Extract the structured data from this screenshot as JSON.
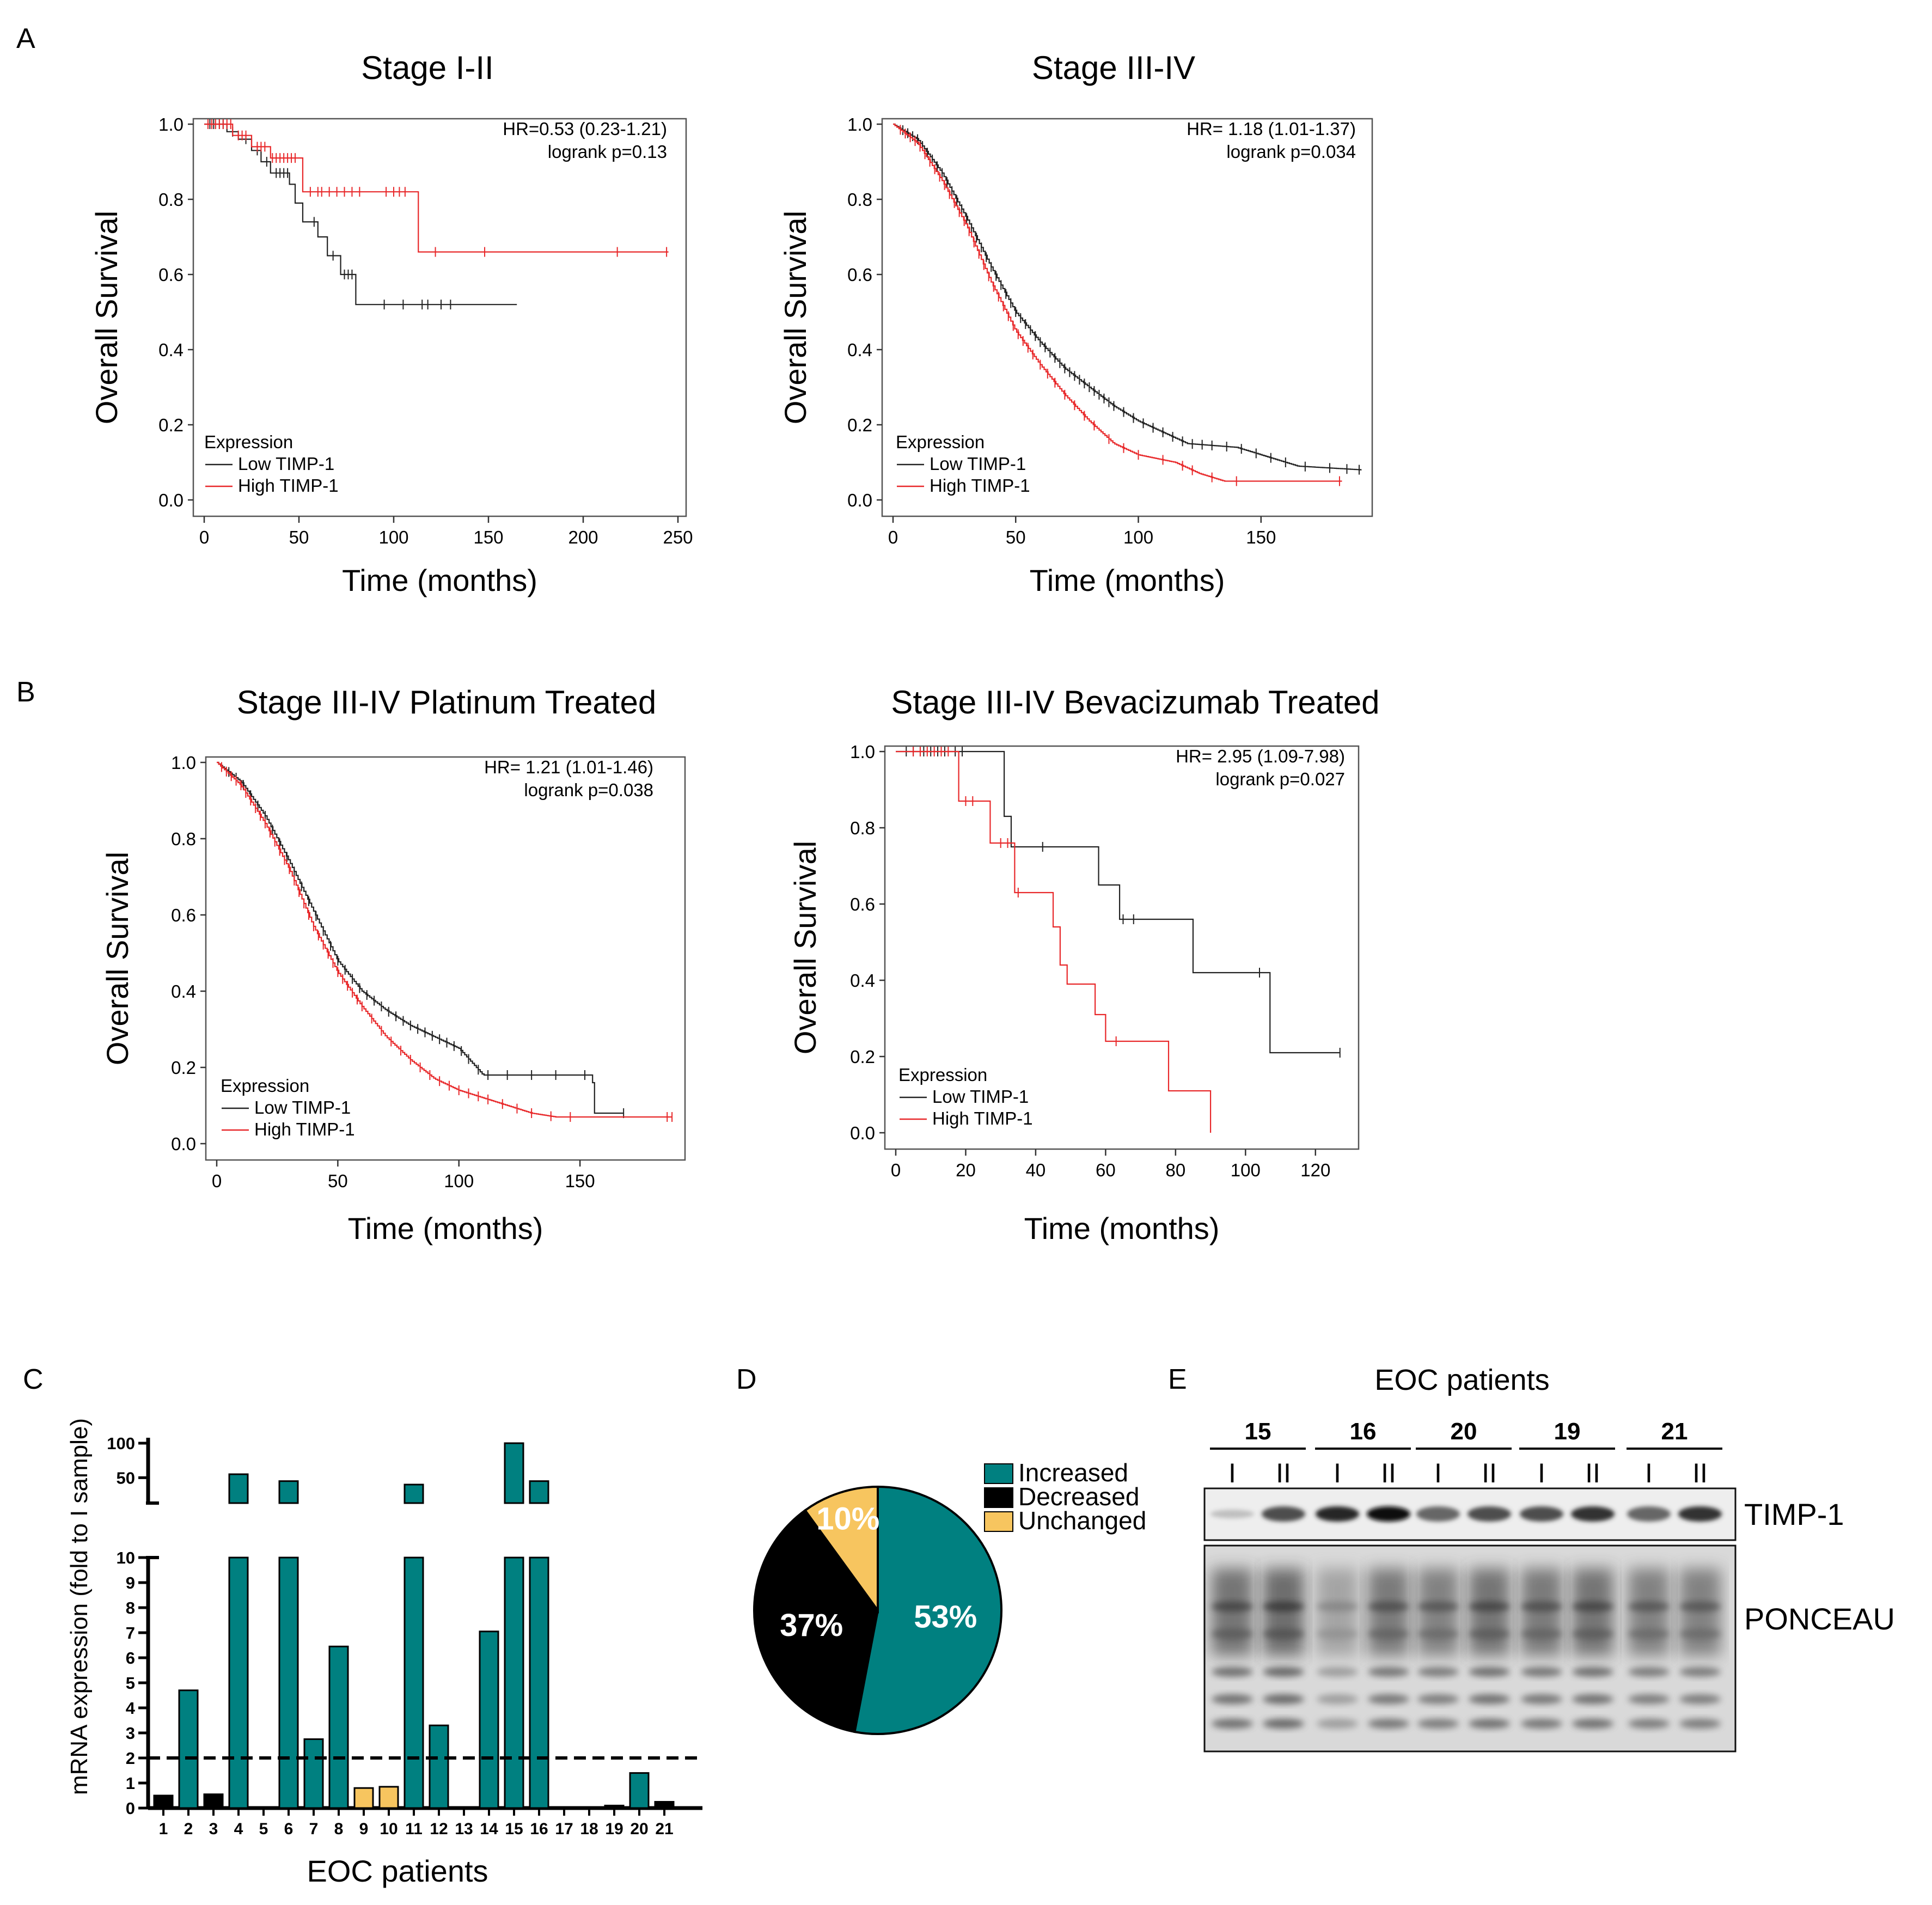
{
  "panel_labels": [
    "A",
    "B",
    "C",
    "D",
    "E"
  ],
  "colors": {
    "low": "#222222",
    "high": "#e8282a",
    "increased": "#008080",
    "decreased": "#000000",
    "unchanged": "#f7c55f",
    "frame": "#555555"
  },
  "chart_data": [
    {
      "id": "A1",
      "type": "line",
      "title": "Stage I-II",
      "xlabel": "Time (months)",
      "ylabel": "Overall Survival",
      "xlim": [
        0,
        250
      ],
      "ylim": [
        0,
        1
      ],
      "xticks": [
        "0",
        "50",
        "100",
        "150",
        "200",
        "250"
      ],
      "yticks": [
        "0.0",
        "0.2",
        "0.4",
        "0.6",
        "0.8",
        "1.0"
      ],
      "hr": "HR=0.53 (0.23-1.21)",
      "logrank": "logrank p=0.13",
      "legend_title": "Expression",
      "series": [
        {
          "name": "Low TIMP-1",
          "key": "low",
          "end": 165,
          "steps": [
            [
              0,
              1
            ],
            [
              12,
              0.98
            ],
            [
              18,
              0.96
            ],
            [
              25,
              0.93
            ],
            [
              30,
              0.9
            ],
            [
              35,
              0.87
            ],
            [
              45,
              0.84
            ],
            [
              48,
              0.79
            ],
            [
              52,
              0.74
            ],
            [
              60,
              0.7
            ],
            [
              65,
              0.65
            ],
            [
              72,
              0.6
            ],
            [
              80,
              0.52
            ]
          ],
          "censors": [
            3,
            5,
            8,
            10,
            15,
            22,
            28,
            33,
            38,
            40,
            42,
            44,
            58,
            68,
            74,
            76,
            78,
            95,
            105,
            115,
            118,
            125,
            130
          ]
        },
        {
          "name": "High TIMP-1",
          "key": "high",
          "end": 245,
          "steps": [
            [
              0,
              1
            ],
            [
              15,
              0.97
            ],
            [
              25,
              0.94
            ],
            [
              35,
              0.91
            ],
            [
              52,
              0.82
            ],
            [
              113,
              0.66
            ]
          ],
          "censors": [
            2,
            4,
            6,
            8,
            10,
            12,
            14,
            18,
            20,
            22,
            28,
            30,
            32,
            36,
            38,
            40,
            42,
            44,
            46,
            48,
            56,
            60,
            62,
            66,
            70,
            74,
            78,
            82,
            96,
            100,
            103,
            106,
            122,
            148,
            218,
            244
          ]
        }
      ]
    },
    {
      "id": "A2",
      "type": "line",
      "title": "Stage III-IV",
      "xlabel": "Time (months)",
      "ylabel": "Overall Survival",
      "xlim": [
        0,
        192
      ],
      "ylim": [
        0,
        1
      ],
      "xticks": [
        "0",
        "50",
        "100",
        "150"
      ],
      "yticks": [
        "0.0",
        "0.2",
        "0.4",
        "0.6",
        "0.8",
        "1.0"
      ],
      "hr": "HR= 1.18 (1.01-1.37)",
      "logrank": "logrank p=0.034",
      "legend_title": "Expression",
      "series": [
        {
          "name": "Low TIMP-1",
          "key": "low",
          "end": 191,
          "curve": [
            [
              0,
              1
            ],
            [
              10,
              0.96
            ],
            [
              20,
              0.87
            ],
            [
              30,
              0.75
            ],
            [
              40,
              0.62
            ],
            [
              50,
              0.5
            ],
            [
              60,
              0.42
            ],
            [
              70,
              0.35
            ],
            [
              80,
              0.3
            ],
            [
              90,
              0.25
            ],
            [
              100,
              0.21
            ],
            [
              110,
              0.18
            ],
            [
              120,
              0.15
            ],
            [
              140,
              0.14
            ],
            [
              150,
              0.12
            ],
            [
              165,
              0.09
            ],
            [
              191,
              0.08
            ]
          ],
          "censors": [
            4,
            6,
            8,
            10,
            12,
            14,
            16,
            18,
            20,
            22,
            24,
            26,
            28,
            30,
            32,
            34,
            36,
            38,
            40,
            42,
            44,
            46,
            48,
            50,
            52,
            54,
            56,
            58,
            60,
            62,
            64,
            66,
            68,
            70,
            72,
            74,
            76,
            78,
            80,
            82,
            84,
            86,
            88,
            90,
            94,
            98,
            102,
            106,
            110,
            114,
            118,
            122,
            126,
            130,
            136,
            142,
            148,
            154,
            160,
            168,
            178,
            185,
            190
          ]
        },
        {
          "name": "High TIMP-1",
          "key": "high",
          "end": 183,
          "curve": [
            [
              0,
              1
            ],
            [
              10,
              0.95
            ],
            [
              20,
              0.85
            ],
            [
              30,
              0.73
            ],
            [
              40,
              0.58
            ],
            [
              50,
              0.45
            ],
            [
              60,
              0.36
            ],
            [
              70,
              0.28
            ],
            [
              80,
              0.21
            ],
            [
              90,
              0.15
            ],
            [
              100,
              0.12
            ],
            [
              115,
              0.1
            ],
            [
              125,
              0.07
            ],
            [
              135,
              0.05
            ],
            [
              183,
              0.05
            ]
          ],
          "censors": [
            3,
            5,
            7,
            9,
            11,
            13,
            15,
            17,
            19,
            21,
            23,
            25,
            27,
            29,
            31,
            33,
            35,
            37,
            39,
            41,
            43,
            45,
            47,
            49,
            51,
            53,
            55,
            57,
            60,
            63,
            66,
            70,
            74,
            78,
            82,
            88,
            94,
            100,
            110,
            118,
            122,
            130,
            140,
            182
          ]
        }
      ]
    },
    {
      "id": "B1",
      "type": "line",
      "title": "Stage III-IV   Platinum Treated",
      "xlabel": "Time (months)",
      "ylabel": "Overall Survival",
      "xlim": [
        0,
        190
      ],
      "ylim": [
        0,
        1
      ],
      "xticks": [
        "0",
        "50",
        "100",
        "150"
      ],
      "yticks": [
        "0.0",
        "0.2",
        "0.4",
        "0.6",
        "0.8",
        "1.0"
      ],
      "hr": "HR= 1.21 (1.01-1.46)",
      "logrank": "logrank p=0.038",
      "legend_title": "Expression",
      "series": [
        {
          "name": "Low TIMP-1",
          "key": "low",
          "end": 168,
          "curve": [
            [
              0,
              1
            ],
            [
              10,
              0.95
            ],
            [
              20,
              0.86
            ],
            [
              30,
              0.74
            ],
            [
              40,
              0.61
            ],
            [
              50,
              0.48
            ],
            [
              60,
              0.4
            ],
            [
              70,
              0.35
            ],
            [
              80,
              0.31
            ],
            [
              90,
              0.28
            ],
            [
              100,
              0.25
            ],
            [
              110,
              0.18
            ],
            [
              155,
              0.18
            ],
            [
              156,
              0.08
            ],
            [
              168,
              0.08
            ]
          ],
          "censors": [
            5,
            8,
            11,
            14,
            17,
            20,
            23,
            26,
            29,
            32,
            35,
            38,
            41,
            44,
            47,
            50,
            53,
            56,
            59,
            62,
            65,
            68,
            71,
            74,
            77,
            80,
            83,
            86,
            89,
            92,
            95,
            98,
            101,
            104,
            108,
            112,
            120,
            130,
            140,
            152,
            168
          ]
        },
        {
          "name": "High TIMP-1",
          "key": "high",
          "end": 188,
          "curve": [
            [
              0,
              1
            ],
            [
              10,
              0.94
            ],
            [
              20,
              0.84
            ],
            [
              30,
              0.72
            ],
            [
              40,
              0.57
            ],
            [
              50,
              0.45
            ],
            [
              60,
              0.36
            ],
            [
              70,
              0.28
            ],
            [
              80,
              0.22
            ],
            [
              90,
              0.17
            ],
            [
              100,
              0.14
            ],
            [
              110,
              0.12
            ],
            [
              120,
              0.1
            ],
            [
              130,
              0.08
            ],
            [
              140,
              0.07
            ],
            [
              188,
              0.07
            ]
          ],
          "censors": [
            2,
            4,
            6,
            8,
            10,
            12,
            14,
            16,
            18,
            20,
            22,
            24,
            26,
            28,
            30,
            32,
            34,
            36,
            38,
            40,
            42,
            44,
            46,
            48,
            50,
            52,
            54,
            56,
            58,
            60,
            64,
            68,
            72,
            76,
            80,
            84,
            88,
            92,
            96,
            100,
            104,
            108,
            112,
            118,
            124,
            130,
            138,
            146,
            186,
            188
          ]
        }
      ]
    },
    {
      "id": "B2",
      "type": "line",
      "title": "Stage III-IV  Bevacizumab Treated",
      "xlabel": "Time (months)",
      "ylabel": "Overall Survival",
      "xlim": [
        0,
        130
      ],
      "ylim": [
        0,
        1
      ],
      "xticks": [
        "0",
        "20",
        "40",
        "60",
        "80",
        "100",
        "120"
      ],
      "yticks": [
        "0.0",
        "0.2",
        "0.4",
        "0.6",
        "0.8",
        "1.0"
      ],
      "hr": "HR= 2.95 (1.09-7.98)",
      "logrank": "logrank p=0.027",
      "legend_title": "Expression",
      "series": [
        {
          "name": "Low TIMP-1",
          "key": "low",
          "end": 127,
          "steps": [
            [
              0,
              1
            ],
            [
              31,
              0.83
            ],
            [
              33,
              0.75
            ],
            [
              58,
              0.65
            ],
            [
              64,
              0.56
            ],
            [
              85,
              0.42
            ],
            [
              107,
              0.21
            ]
          ],
          "censors": [
            3,
            5,
            7,
            8,
            10,
            12,
            14,
            17,
            19,
            42,
            65,
            68,
            104,
            127
          ]
        },
        {
          "name": "High TIMP-1",
          "key": "high",
          "end": 90,
          "steps": [
            [
              0,
              1
            ],
            [
              18,
              0.87
            ],
            [
              27,
              0.76
            ],
            [
              34,
              0.63
            ],
            [
              45,
              0.54
            ],
            [
              47,
              0.44
            ],
            [
              49,
              0.39
            ],
            [
              57,
              0.31
            ],
            [
              60,
              0.24
            ],
            [
              78,
              0.11
            ],
            [
              90,
              0.0
            ]
          ],
          "censors": [
            5,
            7,
            9,
            11,
            13,
            15,
            20,
            22,
            30,
            32,
            35,
            63
          ]
        }
      ]
    },
    {
      "id": "C",
      "type": "bar",
      "xlabel": "EOC patients",
      "ylabel": "mRNA expression (fold to I sample)",
      "categories": [
        "1",
        "2",
        "3",
        "4",
        "5",
        "6",
        "7",
        "8",
        "9",
        "10",
        "11",
        "12",
        "13",
        "14",
        "15",
        "16",
        "17",
        "18",
        "19",
        "20",
        "21"
      ],
      "values": [
        0.5,
        4.7,
        0.55,
        55,
        0,
        45,
        2.75,
        6.45,
        0.8,
        0.85,
        40,
        3.3,
        0,
        7.05,
        100,
        45,
        0,
        0,
        0.1,
        1.4,
        0.25
      ],
      "status": [
        "decreased",
        "increased",
        "decreased",
        "increased",
        "decreased",
        "increased",
        "increased",
        "increased",
        "unchanged",
        "unchanged",
        "increased",
        "increased",
        "decreased",
        "increased",
        "increased",
        "increased",
        "decreased",
        "decreased",
        "decreased",
        "increased",
        "decreased"
      ],
      "yticks_lower": [
        "0",
        "1",
        "2",
        "3",
        "4",
        "5",
        "6",
        "7",
        "8",
        "9",
        "10"
      ],
      "yticks_upper": [
        "50",
        "100"
      ],
      "threshold": 2
    },
    {
      "id": "D",
      "type": "pie",
      "slices": [
        {
          "label": "Increased",
          "value": 53,
          "text": "53%",
          "key": "increased"
        },
        {
          "label": "Decreased",
          "value": 37,
          "text": "37%",
          "key": "decreased"
        },
        {
          "label": "Unchanged",
          "value": 10,
          "text": "10%",
          "key": "unchanged"
        }
      ]
    }
  ],
  "blot": {
    "title": "EOC patients",
    "patients": [
      "15",
      "16",
      "20",
      "19",
      "21"
    ],
    "lane_labels": [
      "I",
      "II"
    ],
    "band_labels": [
      "TIMP-1",
      "PONCEAU"
    ]
  }
}
